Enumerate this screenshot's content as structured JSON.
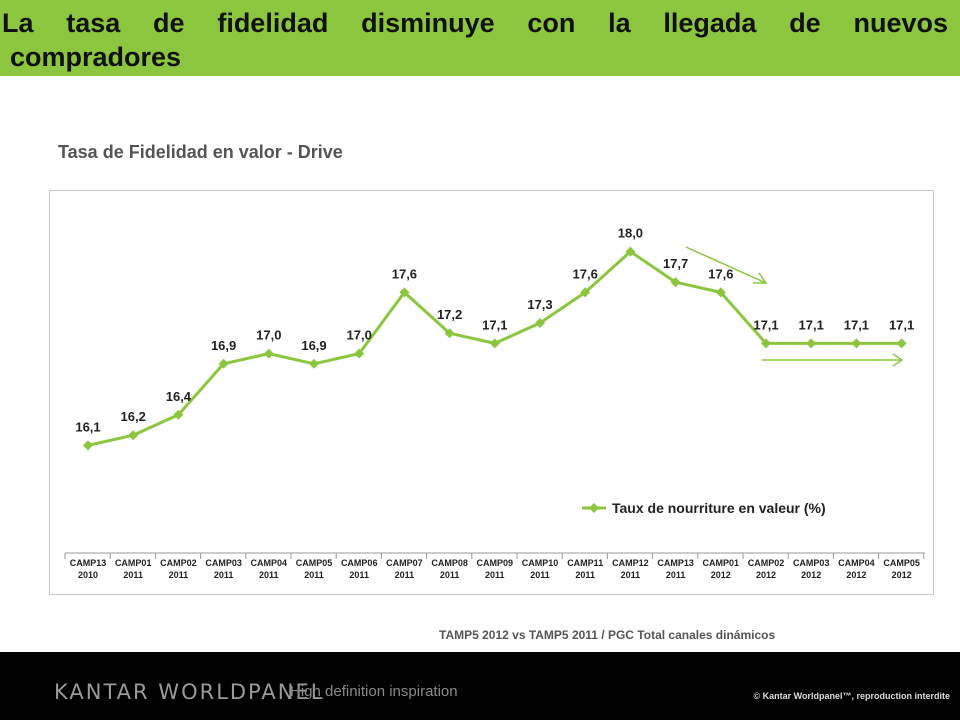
{
  "header": {
    "title_line1": "La tasa de fidelidad disminuye con la llegada de nuevos",
    "title_line2": "compradores"
  },
  "chart_data": {
    "type": "line",
    "title": "Tasa de Fidelidad en valor - Drive",
    "categories": [
      [
        "CAMP13",
        "2010"
      ],
      [
        "CAMP01",
        "2011"
      ],
      [
        "CAMP02",
        "2011"
      ],
      [
        "CAMP03",
        "2011"
      ],
      [
        "CAMP04",
        "2011"
      ],
      [
        "CAMP05",
        "2011"
      ],
      [
        "CAMP06",
        "2011"
      ],
      [
        "CAMP07",
        "2011"
      ],
      [
        "CAMP08",
        "2011"
      ],
      [
        "CAMP09",
        "2011"
      ],
      [
        "CAMP10",
        "2011"
      ],
      [
        "CAMP11",
        "2011"
      ],
      [
        "CAMP12",
        "2011"
      ],
      [
        "CAMP13",
        "2011"
      ],
      [
        "CAMP01",
        "2012"
      ],
      [
        "CAMP02",
        "2012"
      ],
      [
        "CAMP03",
        "2012"
      ],
      [
        "CAMP04",
        "2012"
      ],
      [
        "CAMP05",
        "2012"
      ]
    ],
    "series": [
      {
        "name": "Taux de nourriture en valeur (%)",
        "values": [
          16.1,
          16.2,
          16.4,
          16.9,
          17.0,
          16.9,
          17.0,
          17.6,
          17.2,
          17.1,
          17.3,
          17.6,
          18.0,
          17.7,
          17.6,
          17.1,
          17.1,
          17.1,
          17.1
        ],
        "labels": [
          "16,1",
          "16,2",
          "16,4",
          "16,9",
          "17,0",
          "16,9",
          "17,0",
          "17,6",
          "17,2",
          "17,1",
          "17,3",
          "17,6",
          "18,0",
          "17,7",
          "17,6",
          "17,1",
          "17,1",
          "17,1",
          "17,1"
        ],
        "color": "#8cc63f"
      }
    ],
    "ylim": [
      15.8,
      18.3
    ],
    "legend_position": "bottom-right",
    "grid": false,
    "annotations": [
      "down-arrow",
      "flat-arrow"
    ]
  },
  "source_note": "TAMP5 2012 vs TAMP5 2011 / PGC Total canales dinámicos",
  "footer": {
    "logo": "KANTAR WORLDPANEL",
    "tagline": "High definition inspiration",
    "copyright": "© Kantar Worldpanel™, reproduction interdite"
  },
  "colors": {
    "accent": "#8cc63f",
    "footer_bg": "#000000"
  }
}
